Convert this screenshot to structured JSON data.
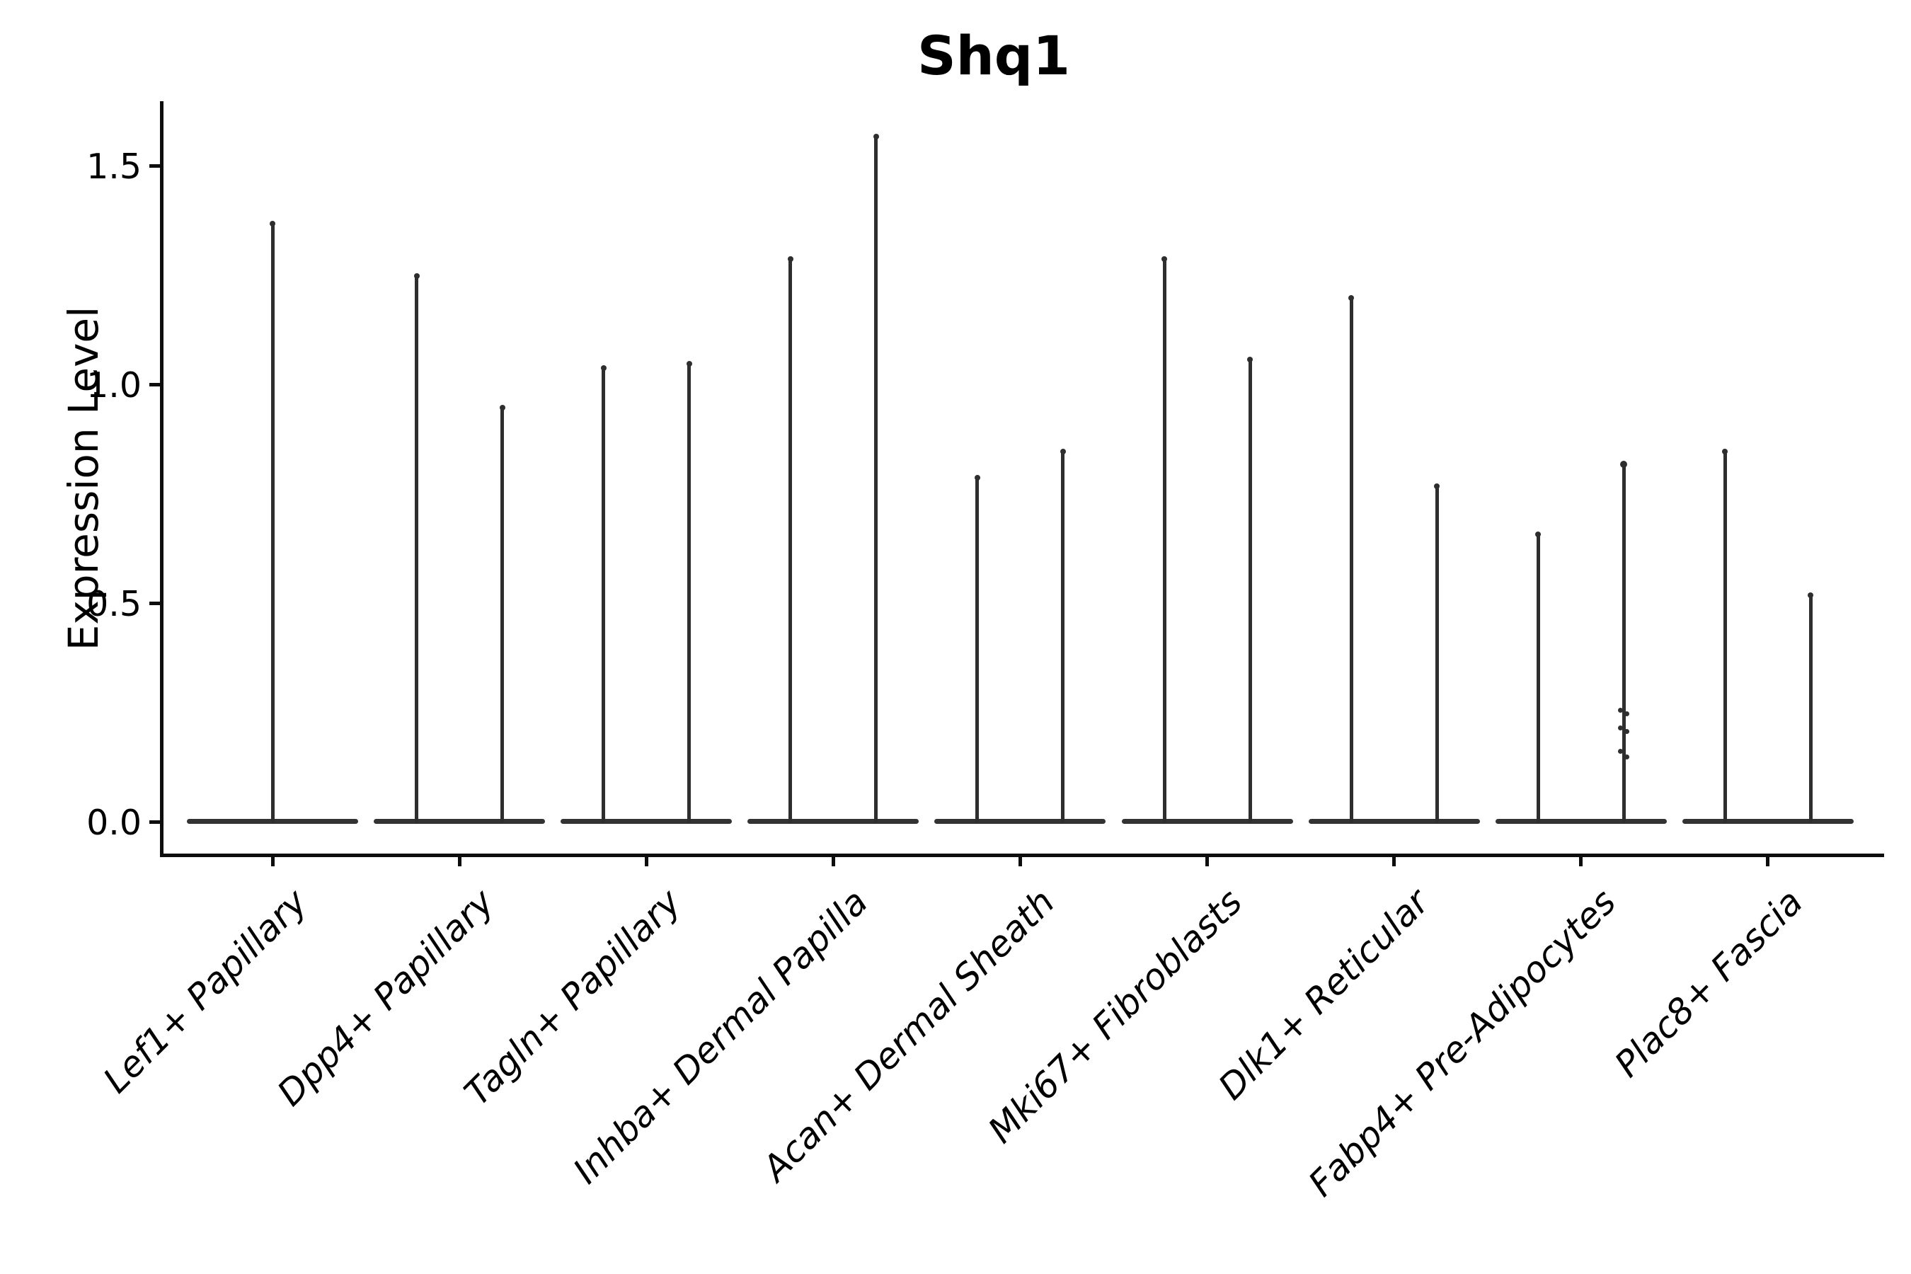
{
  "chart_data": {
    "type": "violin",
    "title": "Shq1",
    "xlabel": "",
    "ylabel": "Expression Level",
    "grid": false,
    "legend": "none",
    "ylim": [
      -0.07,
      1.66
    ],
    "yticks": [
      {
        "value": 0.0,
        "label": "0.0"
      },
      {
        "value": 0.5,
        "label": "0.5"
      },
      {
        "value": 1.0,
        "label": "1.0"
      },
      {
        "value": 1.5,
        "label": "1.5"
      }
    ],
    "categories": [
      "Lef1+ Papillary",
      "Dpp4+ Papillary",
      "Tagln+ Papillary",
      "Inhba+ Dermal Papilla",
      "Acan+ Dermal Sheath",
      "Mki67+ Fibroblasts",
      "Dlk1+ Reticular",
      "Fabp4+ Pre-Adipocytes",
      "Plac8+ Fascia"
    ],
    "violins": [
      {
        "category": "Lef1+ Papillary",
        "maxima": [
          1.37
        ],
        "bulk_at": 0.0
      },
      {
        "category": "Dpp4+ Papillary",
        "maxima": [
          1.25,
          0.95
        ],
        "bulk_at": 0.0
      },
      {
        "category": "Tagln+ Papillary",
        "maxima": [
          1.04,
          1.05
        ],
        "bulk_at": 0.0
      },
      {
        "category": "Inhba+ Dermal Papilla",
        "maxima": [
          1.29,
          1.57
        ],
        "bulk_at": 0.0
      },
      {
        "category": "Acan+ Dermal Sheath",
        "maxima": [
          0.79,
          0.85
        ],
        "bulk_at": 0.0
      },
      {
        "category": "Mki67+ Fibroblasts",
        "maxima": [
          1.29,
          1.06
        ],
        "bulk_at": 0.0
      },
      {
        "category": "Dlk1+ Reticular",
        "maxima": [
          1.2,
          0.77
        ],
        "bulk_at": 0.0
      },
      {
        "category": "Fabp4+ Pre-Adipocytes",
        "maxima": [
          0.66,
          0.82
        ],
        "bulk_at": 0.0
      },
      {
        "category": "Plac8+ Fascia",
        "maxima": [
          0.85,
          0.52
        ],
        "bulk_at": 0.0
      }
    ],
    "scatter_points": {
      "category": "Fabp4+ Pre-Adipocytes",
      "violin_index": 1,
      "values": [
        0.255,
        0.247,
        0.215,
        0.207,
        0.162,
        0.149
      ]
    }
  },
  "colors": {
    "violin": "#2e2e2e",
    "axis": "#0d0d0d",
    "text": "#000000",
    "background": "#ffffff"
  }
}
